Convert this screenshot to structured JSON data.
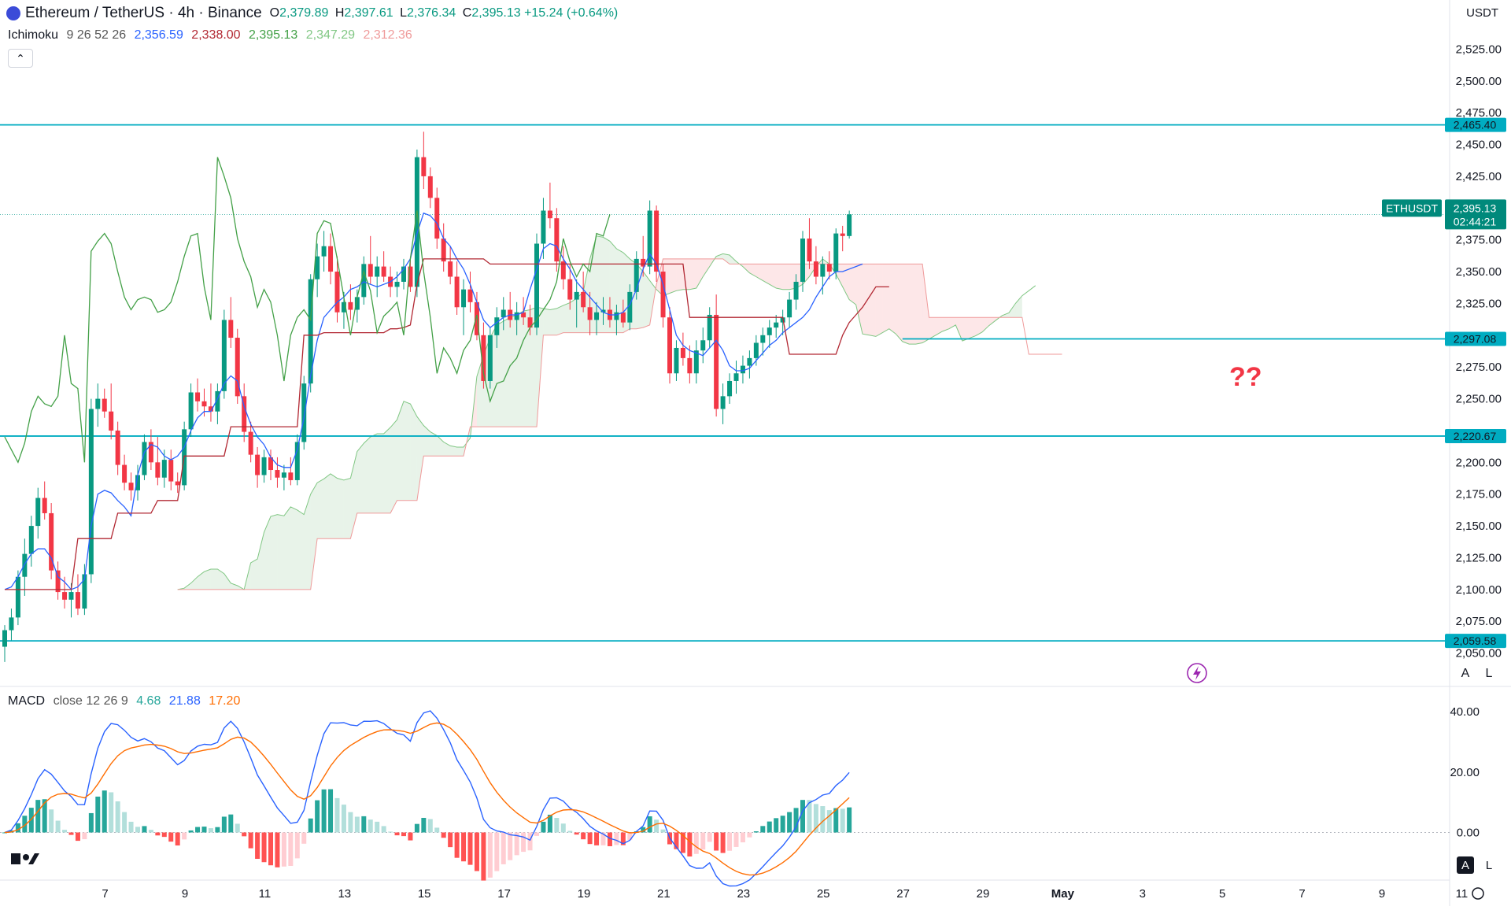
{
  "header": {
    "symbol": "Ethereum / TetherUS · 4h · Binance",
    "o_label": "O",
    "o": "2,379.89",
    "h_label": "H",
    "h": "2,397.61",
    "l_label": "L",
    "l": "2,376.34",
    "c_label": "C",
    "c": "2,395.13",
    "change": "+15.24 (+0.64%)",
    "currency": "USDT"
  },
  "ichimoku": {
    "label": "Ichimoku",
    "params": "9 26 52 26",
    "values": [
      "2,356.59",
      "2,338.00",
      "2,395.13",
      "2,347.29",
      "2,312.36"
    ],
    "colors": [
      "#2962ff",
      "#b22833",
      "#43a047",
      "#a5d6a7",
      "#ef9a9a"
    ]
  },
  "collapse_glyph": "⌃",
  "macd": {
    "label": "MACD",
    "params": "close 12 26 9",
    "values": [
      "4.68",
      "21.88",
      "17.20"
    ],
    "colors": [
      "#26a69a",
      "#2962ff",
      "#ff6d00"
    ]
  },
  "price_tag": {
    "symbol": "ETHUSDT",
    "price": "2,395.13",
    "countdown": "02:44:21"
  },
  "annotation": "??",
  "scale_buttons": {
    "auto": "A",
    "log": "L"
  },
  "colors": {
    "up": "#089981",
    "down": "#f23645",
    "level": "#00acc1",
    "tag": "#00897b"
  },
  "chart_data": {
    "type": "candlestick",
    "timeframe": "4h",
    "price_axis": {
      "ticks": [
        2050,
        2075,
        2100,
        2125,
        2150,
        2175,
        2200,
        2250,
        2275,
        2325,
        2350,
        2375,
        2425,
        2450,
        2475,
        2500,
        2525
      ],
      "tick_labels": [
        "2,050.00",
        "2,075.00",
        "2,100.00",
        "2,125.00",
        "2,150.00",
        "2,175.00",
        "2,200.00",
        "2,250.00",
        "2,275.00",
        "2,325.00",
        "2,350.00",
        "2,375.00",
        "2,425.00",
        "2,450.00",
        "2,475.00",
        "2,500.00",
        "2,525.00"
      ],
      "range": [
        2025,
        2550
      ]
    },
    "levels": [
      {
        "value": 2465.4,
        "label": "2,465.40"
      },
      {
        "value": 2220.67,
        "label": "2,220.67"
      },
      {
        "value": 2059.58,
        "label": "2,059.58"
      },
      {
        "value": 2297.08,
        "label": "2,297.08"
      }
    ],
    "x_axis": {
      "labels": [
        "7",
        "9",
        "11",
        "13",
        "15",
        "17",
        "19",
        "21",
        "23",
        "25",
        "27",
        "29",
        "May",
        "3",
        "5",
        "7",
        "9",
        "11"
      ],
      "label_index": [
        8,
        20,
        32,
        44,
        56,
        68,
        80,
        92,
        104,
        116,
        128,
        140,
        152,
        164,
        176,
        188,
        200,
        212
      ]
    },
    "candles": [
      [
        2055,
        2072,
        2043,
        2068
      ],
      [
        2068,
        2085,
        2060,
        2078
      ],
      [
        2078,
        2115,
        2072,
        2110
      ],
      [
        2110,
        2140,
        2095,
        2128
      ],
      [
        2128,
        2158,
        2118,
        2150
      ],
      [
        2150,
        2180,
        2140,
        2172
      ],
      [
        2172,
        2185,
        2155,
        2160
      ],
      [
        2160,
        2168,
        2108,
        2115
      ],
      [
        2115,
        2122,
        2092,
        2098
      ],
      [
        2098,
        2110,
        2085,
        2092
      ],
      [
        2092,
        2105,
        2078,
        2098
      ],
      [
        2098,
        2112,
        2080,
        2085
      ],
      [
        2085,
        2120,
        2080,
        2112
      ],
      [
        2112,
        2250,
        2105,
        2242
      ],
      [
        2242,
        2262,
        2228,
        2250
      ],
      [
        2250,
        2258,
        2235,
        2240
      ],
      [
        2240,
        2262,
        2218,
        2225
      ],
      [
        2225,
        2232,
        2190,
        2198
      ],
      [
        2198,
        2206,
        2178,
        2184
      ],
      [
        2184,
        2192,
        2170,
        2178
      ],
      [
        2178,
        2198,
        2170,
        2190
      ],
      [
        2190,
        2222,
        2186,
        2216
      ],
      [
        2216,
        2226,
        2194,
        2200
      ],
      [
        2200,
        2220,
        2182,
        2188
      ],
      [
        2188,
        2210,
        2180,
        2202
      ],
      [
        2202,
        2210,
        2178,
        2185
      ],
      [
        2185,
        2192,
        2176,
        2182
      ],
      [
        2182,
        2232,
        2178,
        2226
      ],
      [
        2226,
        2262,
        2220,
        2255
      ],
      [
        2255,
        2266,
        2240,
        2248
      ],
      [
        2248,
        2258,
        2236,
        2244
      ],
      [
        2244,
        2262,
        2232,
        2240
      ],
      [
        2240,
        2262,
        2230,
        2256
      ],
      [
        2256,
        2320,
        2250,
        2312
      ],
      [
        2312,
        2330,
        2290,
        2298
      ],
      [
        2298,
        2305,
        2246,
        2252
      ],
      [
        2252,
        2262,
        2216,
        2224
      ],
      [
        2224,
        2232,
        2200,
        2206
      ],
      [
        2206,
        2212,
        2180,
        2190
      ],
      [
        2190,
        2210,
        2184,
        2204
      ],
      [
        2204,
        2210,
        2186,
        2194
      ],
      [
        2194,
        2204,
        2180,
        2188
      ],
      [
        2188,
        2198,
        2178,
        2192
      ],
      [
        2192,
        2204,
        2182,
        2186
      ],
      [
        2186,
        2222,
        2182,
        2216
      ],
      [
        2216,
        2268,
        2210,
        2262
      ],
      [
        2262,
        2348,
        2255,
        2344
      ],
      [
        2344,
        2372,
        2330,
        2362
      ],
      [
        2362,
        2382,
        2350,
        2370
      ],
      [
        2370,
        2380,
        2340,
        2350
      ],
      [
        2350,
        2362,
        2310,
        2318
      ],
      [
        2318,
        2334,
        2305,
        2326
      ],
      [
        2326,
        2340,
        2312,
        2320
      ],
      [
        2320,
        2336,
        2310,
        2330
      ],
      [
        2330,
        2362,
        2324,
        2356
      ],
      [
        2356,
        2378,
        2340,
        2346
      ],
      [
        2346,
        2362,
        2330,
        2354
      ],
      [
        2354,
        2366,
        2342,
        2346
      ],
      [
        2346,
        2354,
        2330,
        2338
      ],
      [
        2338,
        2350,
        2330,
        2342
      ],
      [
        2342,
        2360,
        2336,
        2354
      ],
      [
        2354,
        2362,
        2334,
        2338
      ],
      [
        2338,
        2446,
        2330,
        2440
      ],
      [
        2440,
        2460,
        2415,
        2425
      ],
      [
        2425,
        2432,
        2400,
        2408
      ],
      [
        2408,
        2416,
        2368,
        2376
      ],
      [
        2376,
        2388,
        2350,
        2358
      ],
      [
        2358,
        2370,
        2340,
        2346
      ],
      [
        2346,
        2358,
        2316,
        2322
      ],
      [
        2322,
        2344,
        2300,
        2336
      ],
      [
        2336,
        2350,
        2318,
        2326
      ],
      [
        2326,
        2334,
        2296,
        2300
      ],
      [
        2300,
        2310,
        2258,
        2264
      ],
      [
        2264,
        2306,
        2258,
        2300
      ],
      [
        2300,
        2322,
        2290,
        2314
      ],
      [
        2314,
        2330,
        2304,
        2320
      ],
      [
        2320,
        2334,
        2306,
        2312
      ],
      [
        2312,
        2326,
        2300,
        2318
      ],
      [
        2318,
        2330,
        2308,
        2314
      ],
      [
        2314,
        2324,
        2300,
        2306
      ],
      [
        2306,
        2380,
        2300,
        2372
      ],
      [
        2372,
        2408,
        2360,
        2398
      ],
      [
        2398,
        2420,
        2384,
        2392
      ],
      [
        2392,
        2400,
        2350,
        2358
      ],
      [
        2358,
        2370,
        2336,
        2344
      ],
      [
        2344,
        2356,
        2320,
        2328
      ],
      [
        2328,
        2344,
        2306,
        2334
      ],
      [
        2334,
        2350,
        2318,
        2322
      ],
      [
        2322,
        2334,
        2300,
        2312
      ],
      [
        2312,
        2326,
        2300,
        2318
      ],
      [
        2318,
        2330,
        2308,
        2320
      ],
      [
        2320,
        2330,
        2306,
        2312
      ],
      [
        2312,
        2324,
        2300,
        2318
      ],
      [
        2318,
        2328,
        2306,
        2310
      ],
      [
        2310,
        2340,
        2304,
        2334
      ],
      [
        2334,
        2366,
        2328,
        2360
      ],
      [
        2360,
        2378,
        2346,
        2354
      ],
      [
        2354,
        2406,
        2348,
        2398
      ],
      [
        2398,
        2402,
        2342,
        2350
      ],
      [
        2350,
        2356,
        2306,
        2314
      ],
      [
        2314,
        2322,
        2262,
        2270
      ],
      [
        2270,
        2296,
        2264,
        2290
      ],
      [
        2290,
        2302,
        2276,
        2282
      ],
      [
        2282,
        2292,
        2262,
        2270
      ],
      [
        2270,
        2296,
        2262,
        2288
      ],
      [
        2288,
        2306,
        2278,
        2296
      ],
      [
        2296,
        2322,
        2290,
        2316
      ],
      [
        2316,
        2332,
        2236,
        2242
      ],
      [
        2242,
        2262,
        2230,
        2252
      ],
      [
        2252,
        2270,
        2246,
        2264
      ],
      [
        2264,
        2280,
        2254,
        2270
      ],
      [
        2270,
        2284,
        2262,
        2276
      ],
      [
        2276,
        2288,
        2266,
        2282
      ],
      [
        2282,
        2300,
        2276,
        2294
      ],
      [
        2294,
        2306,
        2284,
        2300
      ],
      [
        2300,
        2312,
        2290,
        2306
      ],
      [
        2306,
        2316,
        2298,
        2310
      ],
      [
        2310,
        2320,
        2300,
        2314
      ],
      [
        2314,
        2334,
        2306,
        2328
      ],
      [
        2328,
        2348,
        2320,
        2342
      ],
      [
        2342,
        2382,
        2334,
        2376
      ],
      [
        2376,
        2392,
        2352,
        2358
      ],
      [
        2358,
        2370,
        2340,
        2346
      ],
      [
        2346,
        2362,
        2332,
        2356
      ],
      [
        2356,
        2366,
        2344,
        2350
      ],
      [
        2350,
        2384,
        2344,
        2380
      ],
      [
        2380,
        2386,
        2366,
        2378
      ],
      [
        2378,
        2398,
        2376,
        2395
      ]
    ],
    "ichimoku_lines": {
      "tenkan": {
        "name": "Tenkan",
        "color": "#2962ff",
        "values": [
          2100,
          2102,
          2110,
          2120,
          2128,
          2132,
          2132,
          2125,
          2110,
          2106,
          2100,
          2102,
          2108,
          2150,
          2175,
          2178,
          2176,
          2170,
          2165,
          2158,
          2190,
          2208,
          2214,
          2212,
          2205,
          2202,
          2205,
          2212,
          2225,
          2235,
          2240,
          2240,
          2250,
          2262,
          2268,
          2264,
          2244,
          2230,
          2220,
          2214,
          2204,
          2198,
          2196,
          2196,
          2210,
          2235,
          2268,
          2296,
          2314,
          2320,
          2326,
          2330,
          2336,
          2338,
          2342,
          2340,
          2338,
          2340,
          2342,
          2346,
          2352,
          2360,
          2380,
          2396,
          2394,
          2388,
          2376,
          2370,
          2360,
          2352,
          2340,
          2326,
          2312,
          2306,
          2310,
          2314,
          2316,
          2316,
          2318,
          2336,
          2352,
          2368,
          2372,
          2370,
          2360,
          2352,
          2342,
          2336,
          2330,
          2324,
          2318,
          2316,
          2316,
          2318,
          2324,
          2336,
          2352,
          2364,
          2356,
          2340,
          2320,
          2300,
          2292,
          2288,
          2286,
          2284,
          2290,
          2296,
          2288,
          2276,
          2272,
          2272,
          2274,
          2280,
          2286,
          2292,
          2296,
          2302,
          2306,
          2310,
          2314,
          2320,
          2330,
          2338,
          2346,
          2350,
          2350,
          2352,
          2354,
          2356
        ]
      },
      "kijun": {
        "name": "Kijun",
        "color": "#b22833",
        "values": [
          2100,
          2100,
          2100,
          2100,
          2100,
          2100,
          2100,
          2100,
          2100,
          2100,
          2100,
          2140,
          2140,
          2140,
          2140,
          2140,
          2140,
          2160,
          2160,
          2160,
          2160,
          2160,
          2160,
          2170,
          2170,
          2170,
          2170,
          2205,
          2205,
          2205,
          2205,
          2205,
          2205,
          2205,
          2228,
          2228,
          2228,
          2228,
          2228,
          2228,
          2228,
          2228,
          2228,
          2228,
          2228,
          2300,
          2300,
          2300,
          2302,
          2302,
          2302,
          2302,
          2302,
          2302,
          2302,
          2302,
          2302,
          2302,
          2305,
          2305,
          2306,
          2308,
          2340,
          2360,
          2360,
          2360,
          2360,
          2360,
          2360,
          2360,
          2360,
          2360,
          2360,
          2356,
          2356,
          2356,
          2356,
          2356,
          2356,
          2356,
          2356,
          2356,
          2356,
          2356,
          2356,
          2356,
          2356,
          2356,
          2356,
          2356,
          2356,
          2356,
          2356,
          2356,
          2356,
          2356,
          2356,
          2356,
          2356,
          2356,
          2356,
          2356,
          2356,
          2314,
          2314,
          2314,
          2314,
          2314,
          2314,
          2314,
          2314,
          2314,
          2314,
          2314,
          2314,
          2314,
          2314,
          2314,
          2285,
          2285,
          2285,
          2285,
          2285,
          2285,
          2285,
          2285,
          2300,
          2310,
          2316,
          2322,
          2330,
          2338,
          2338,
          2338
        ]
      },
      "chikou": {
        "name": "Chikou",
        "color": "#43a047",
        "values": [
          2220,
          2210,
          2200,
          2215,
          2240,
          2252,
          2246,
          2244,
          2252,
          2300,
          2262,
          2258,
          2200,
          2366,
          2374,
          2380,
          2372,
          2350,
          2330,
          2320,
          2328,
          2330,
          2328,
          2318,
          2320,
          2326,
          2342,
          2362,
          2378,
          2380,
          2338,
          2312,
          2440,
          2425,
          2408,
          2376,
          2358,
          2346,
          2322,
          2336,
          2326,
          2300,
          2264,
          2300,
          2314,
          2320,
          2312,
          2380,
          2390,
          2388,
          2360,
          2330,
          2300,
          2330,
          2350,
          2335,
          2302,
          2315,
          2320,
          2326,
          2300,
          2360,
          2398,
          2350,
          2314,
          2270,
          2290,
          2282,
          2270,
          2288,
          2296,
          2316,
          2270,
          2248,
          2262,
          2264,
          2276,
          2282,
          2296,
          2306,
          2312,
          2320,
          2328,
          2342,
          2376,
          2358,
          2346,
          2356,
          2350,
          2380,
          2378,
          2395
        ]
      },
      "span_a": {
        "name": "Senkou A",
        "color": "#a5d6a7"
      },
      "span_b": {
        "name": "Senkou B",
        "color": "#ef9a9a"
      }
    },
    "macd_axis": {
      "ticks": [
        0,
        20,
        40
      ],
      "tick_labels": [
        "0.00",
        "20.00",
        "40.00"
      ],
      "range": [
        -15,
        45
      ]
    }
  }
}
